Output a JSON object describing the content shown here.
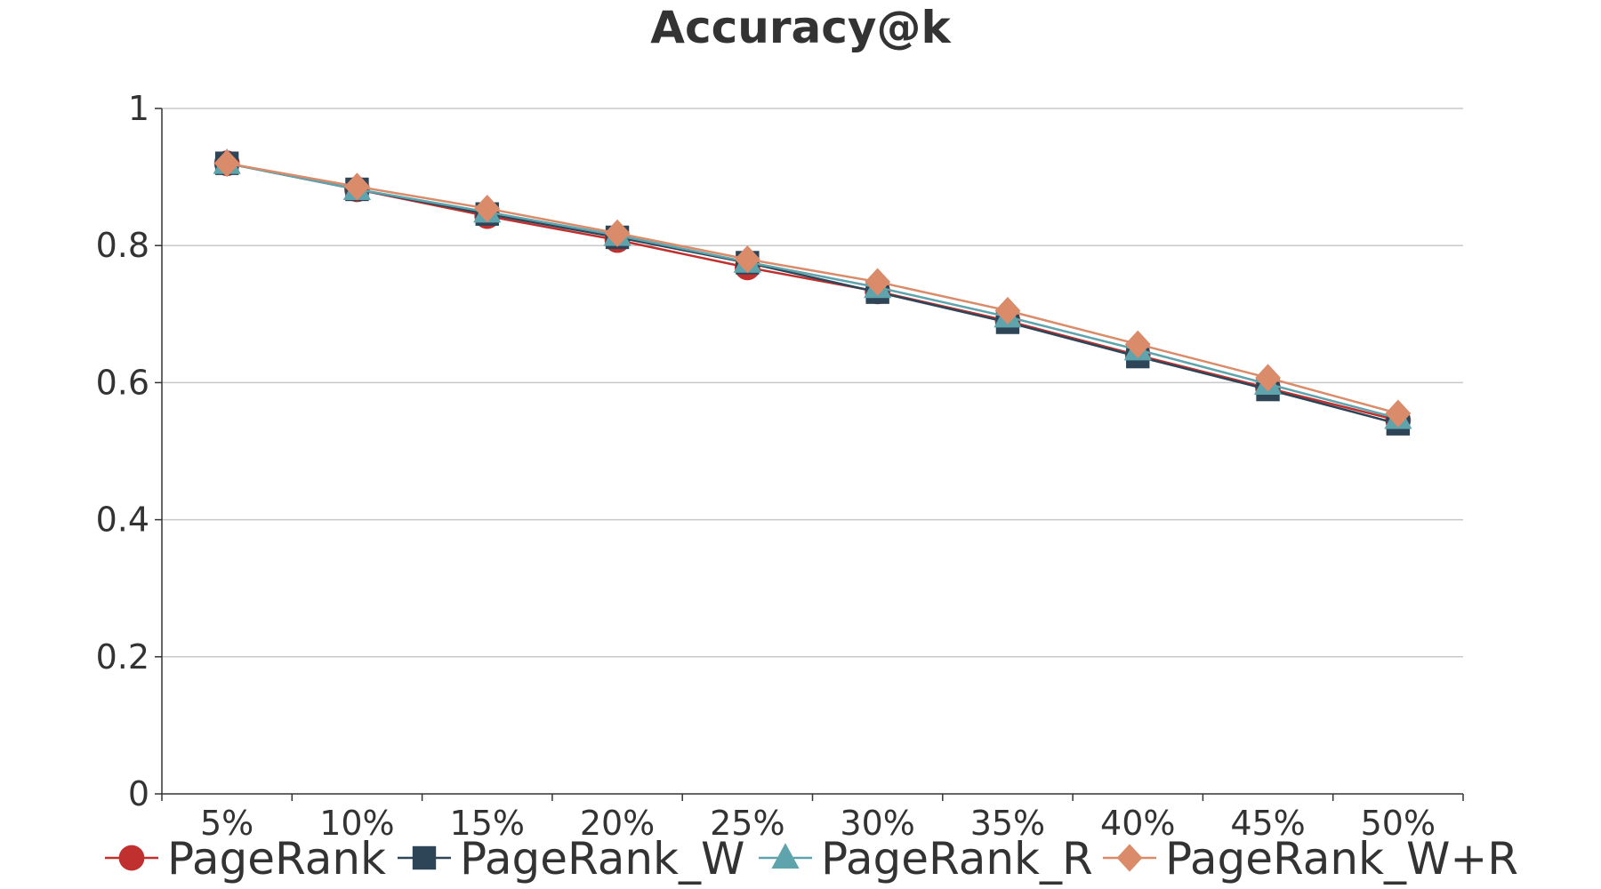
{
  "chart_data": {
    "type": "line",
    "title": "Accuracy@k",
    "xlabel": "",
    "ylabel": "",
    "categories": [
      "5%",
      "10%",
      "15%",
      "20%",
      "25%",
      "30%",
      "35%",
      "40%",
      "45%",
      "50%"
    ],
    "y_ticks": [
      "0",
      "0.2",
      "0.4",
      "0.6",
      "0.8",
      "1"
    ],
    "ylim": [
      0,
      1
    ],
    "grid": "horizontal",
    "legend_position": "bottom",
    "series": [
      {
        "name": "PageRank",
        "color": "#c0302e",
        "marker": "circle",
        "values": [
          0.92,
          0.882,
          0.843,
          0.808,
          0.768,
          0.733,
          0.69,
          0.64,
          0.592,
          0.545
        ]
      },
      {
        "name": "PageRank_W",
        "color": "#2e4557",
        "marker": "square",
        "values": [
          0.92,
          0.882,
          0.846,
          0.812,
          0.775,
          0.732,
          0.688,
          0.638,
          0.59,
          0.54
        ]
      },
      {
        "name": "PageRank_R",
        "color": "#5fa3ad",
        "marker": "triangle",
        "values": [
          0.92,
          0.882,
          0.849,
          0.815,
          0.776,
          0.739,
          0.696,
          0.648,
          0.598,
          0.548
        ]
      },
      {
        "name": "PageRank_W+R",
        "color": "#d98b6a",
        "marker": "diamond",
        "values": [
          0.92,
          0.886,
          0.854,
          0.818,
          0.78,
          0.747,
          0.705,
          0.656,
          0.607,
          0.555
        ]
      }
    ]
  }
}
